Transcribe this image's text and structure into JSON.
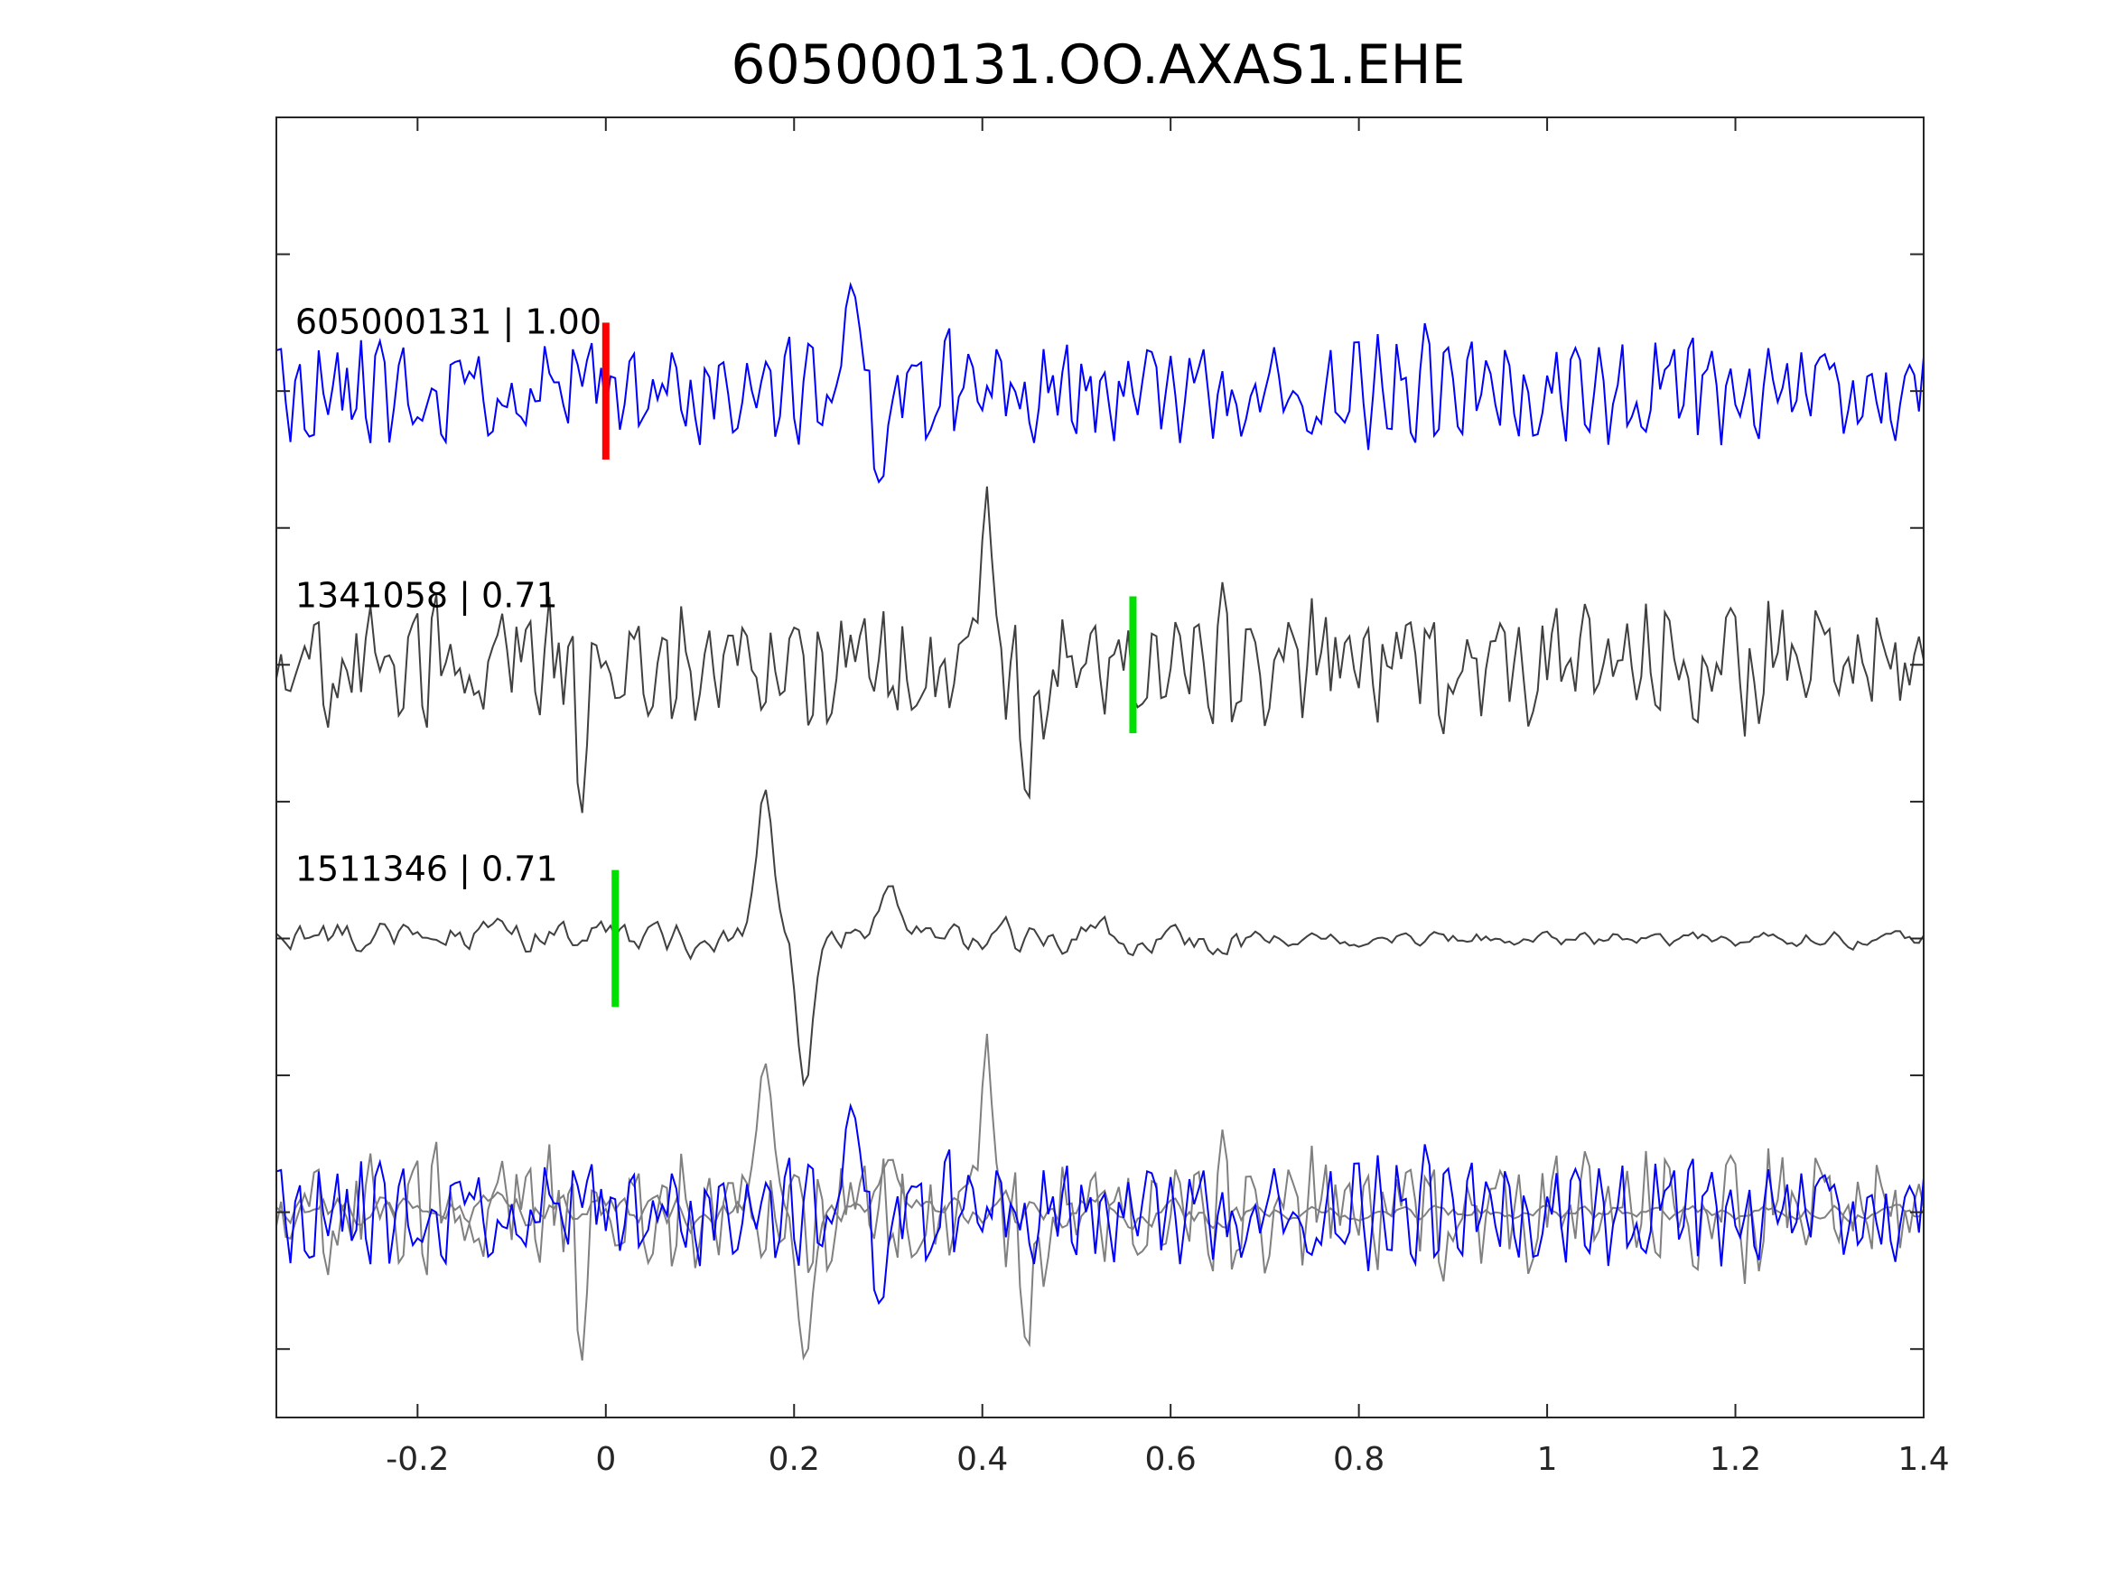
{
  "chart_data": {
    "type": "line",
    "title": "605000131.OO.AXAS1.EHE",
    "xlabel": "",
    "ylabel": "",
    "xlim": [
      -0.35,
      1.4
    ],
    "ylim": [
      -0.5,
      9
    ],
    "xticks": [
      -0.2,
      0,
      0.2,
      0.4,
      0.6,
      0.8,
      1,
      1.2,
      1.4
    ],
    "xtick_labels": [
      "-0.2",
      "0",
      "0.2",
      "0.4",
      "0.6",
      "0.8",
      "1",
      "1.2",
      "1.4"
    ],
    "yticks": [
      0,
      1,
      2,
      3,
      4,
      5,
      6,
      7,
      8
    ],
    "grid": false,
    "sample_interval": 0.005,
    "series": [
      {
        "name": "605000131",
        "label": "605000131 | 1.00",
        "correlation": 1.0,
        "offset": 7,
        "color": "#0000ff",
        "pick_time": 0.0,
        "pick_color": "#ff0000",
        "noise_amp": 0.28,
        "seed": 11,
        "bursts": [
          {
            "t": 0.262,
            "a": 1.1,
            "w": 0.012
          },
          {
            "t": 0.292,
            "a": -0.75,
            "w": 0.01
          }
        ]
      },
      {
        "name": "1341058",
        "label": "1341058 | 0.71",
        "correlation": 0.71,
        "offset": 5,
        "color": "#404040",
        "pick_time": 0.56,
        "pick_color": "#00e000",
        "noise_amp": 0.32,
        "seed": 23,
        "bursts": [
          {
            "t": 0.402,
            "a": 1.1,
            "w": 0.01
          },
          {
            "t": 0.448,
            "a": -0.95,
            "w": 0.01
          },
          {
            "t": -0.027,
            "a": -0.9,
            "w": 0.006
          }
        ]
      },
      {
        "name": "1511346",
        "label": "1511346 | 0.71",
        "correlation": 0.71,
        "offset": 3,
        "color": "#404040",
        "pick_time": 0.01,
        "pick_color": "#00e000",
        "noise_amp": 0.16,
        "seed": 37,
        "smooth": true,
        "bursts": [
          {
            "t": 0.168,
            "a": 1.0,
            "w": 0.012
          },
          {
            "t": 0.212,
            "a": -1.1,
            "w": 0.012
          },
          {
            "t": 0.3,
            "a": 0.35,
            "w": 0.02
          }
        ]
      }
    ],
    "overlay": {
      "offset": 1,
      "gray_color": "#808080"
    }
  }
}
